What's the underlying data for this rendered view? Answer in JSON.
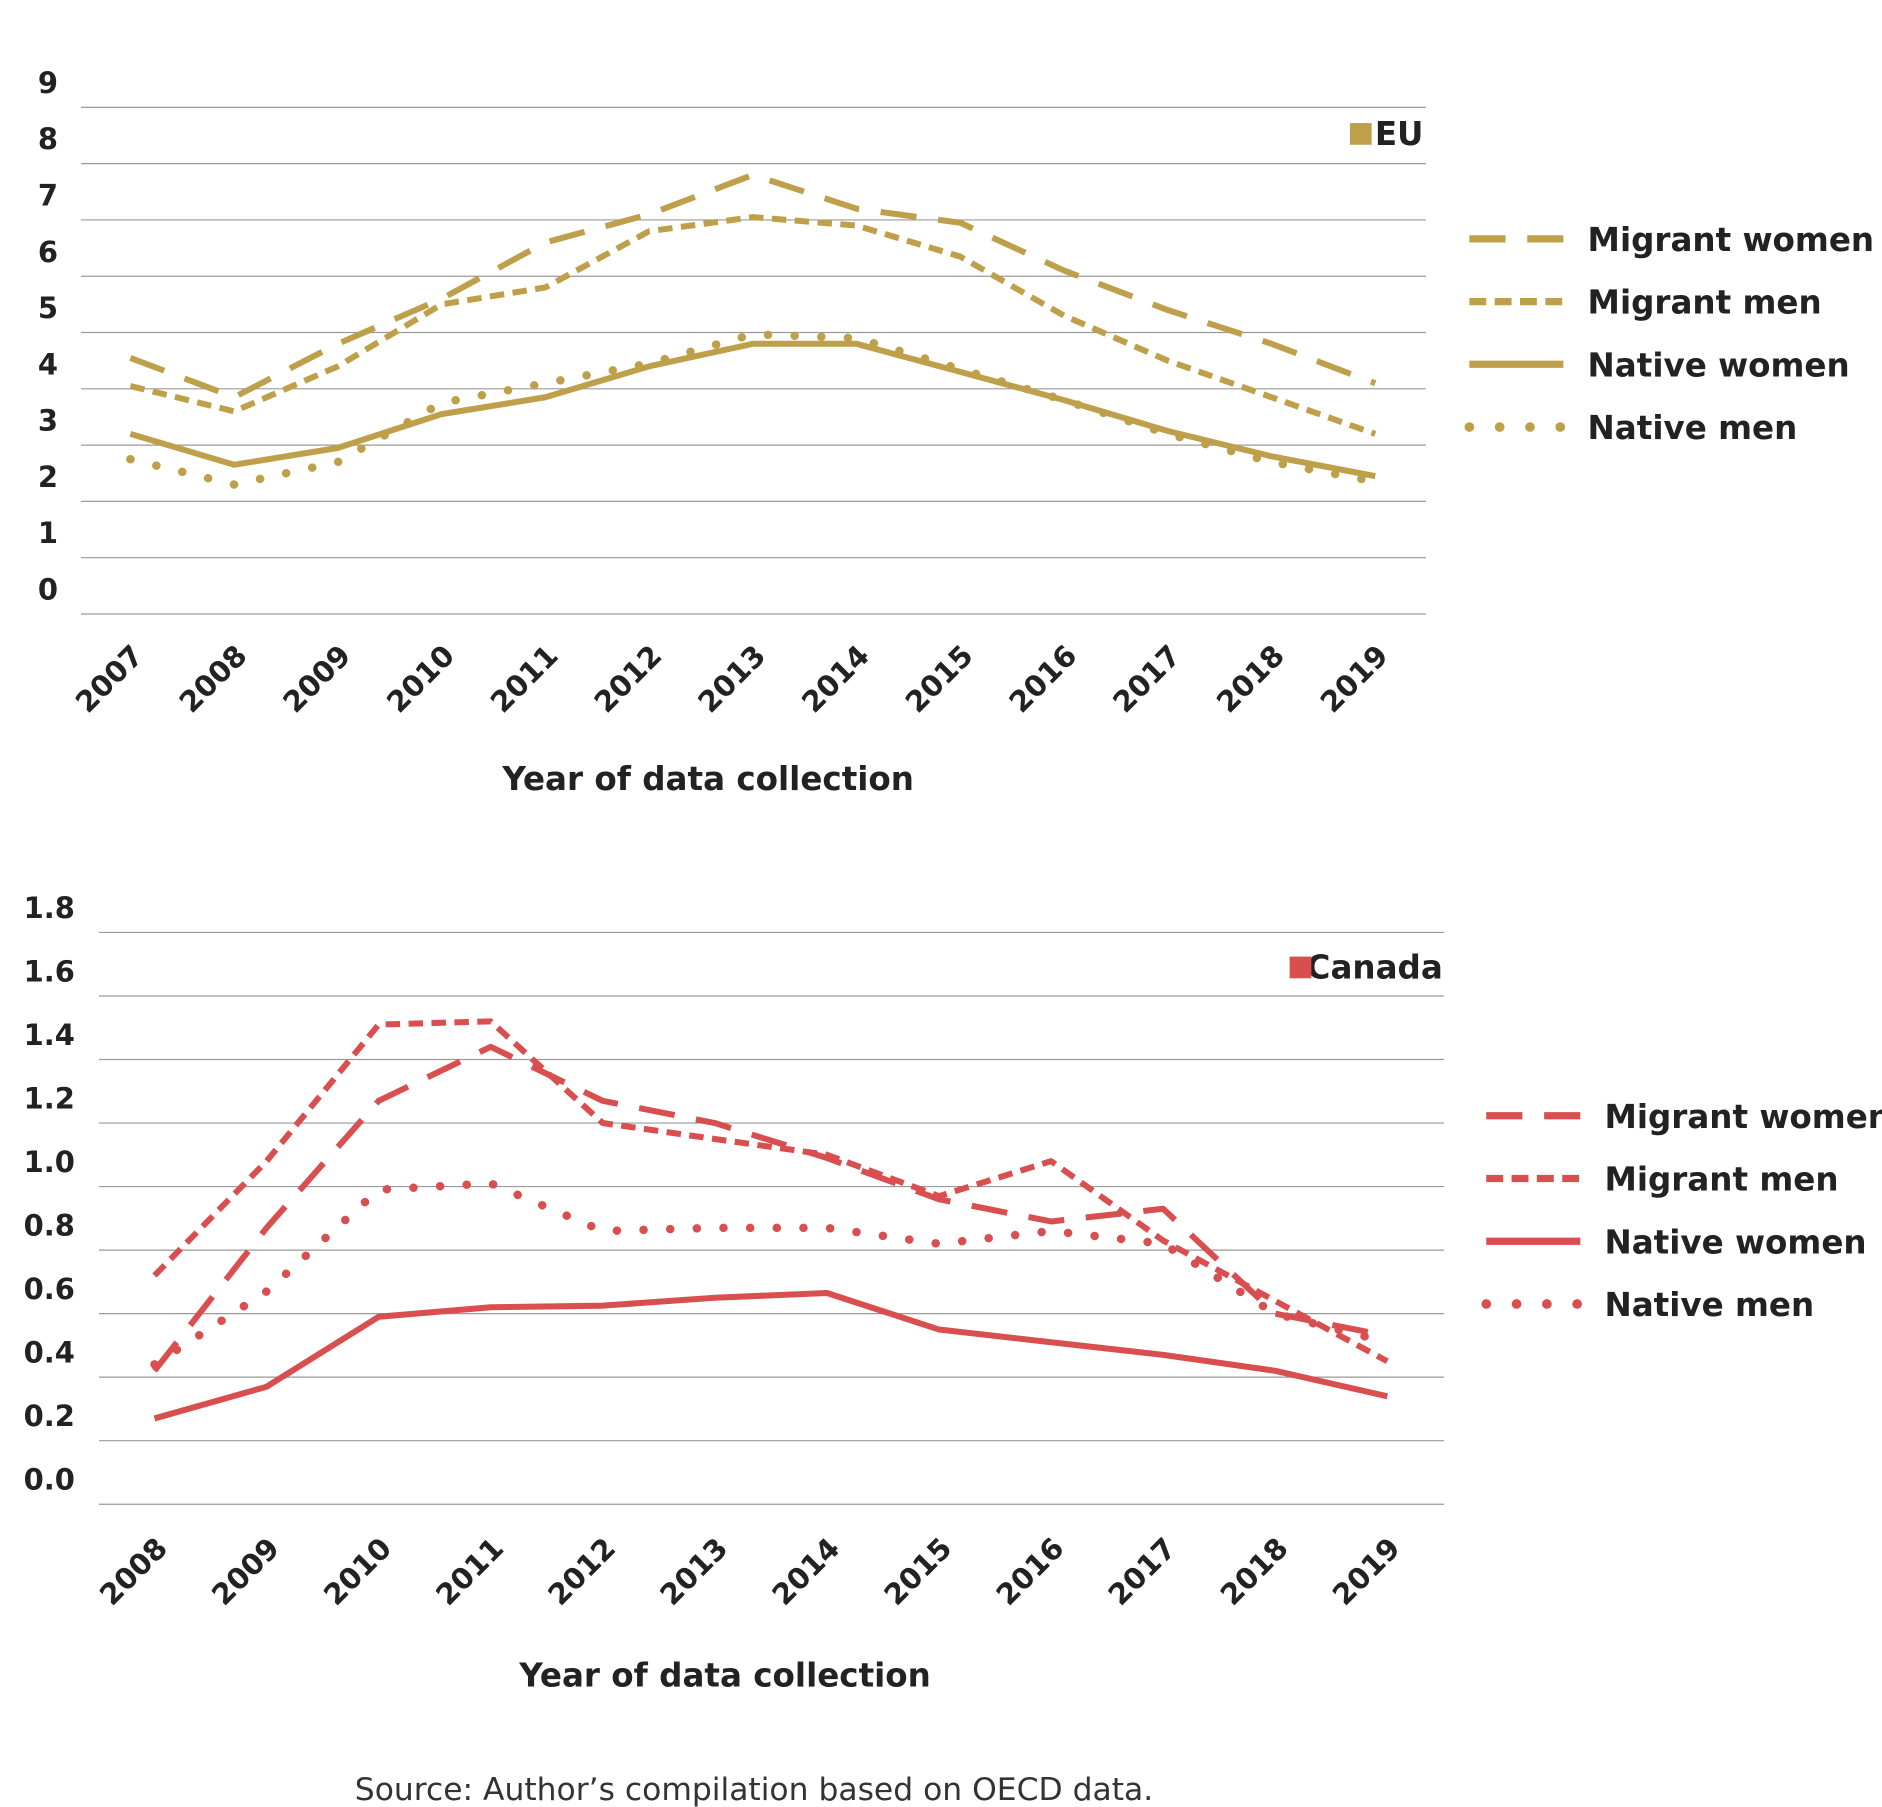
{
  "chart_data": [
    {
      "type": "line",
      "region_label": "EU",
      "xlabel": "Year of data collection",
      "ylabel": "",
      "ylim": [
        0,
        9
      ],
      "yticks": [
        0,
        1,
        2,
        3,
        4,
        5,
        6,
        7,
        8,
        9
      ],
      "grid": true,
      "legend_placement": "right",
      "color": "#bfa04a",
      "categories": [
        "2007",
        "2008",
        "2009",
        "2010",
        "2011",
        "2012",
        "2013",
        "2014",
        "2015",
        "2016",
        "2017",
        "2018",
        "2019"
      ],
      "series": [
        {
          "name": "Migrant women",
          "style": "long-dash",
          "values": [
            4.55,
            3.85,
            4.8,
            5.6,
            6.6,
            7.1,
            7.8,
            7.2,
            6.95,
            6.1,
            5.4,
            4.8,
            4.1
          ]
        },
        {
          "name": "Migrant men",
          "style": "short-dash",
          "values": [
            4.05,
            3.6,
            4.4,
            5.5,
            5.8,
            6.8,
            7.05,
            6.9,
            6.35,
            5.3,
            4.5,
            3.85,
            3.2
          ]
        },
        {
          "name": "Native  women",
          "style": "solid",
          "values": [
            3.2,
            2.65,
            2.95,
            3.55,
            3.85,
            4.4,
            4.8,
            4.8,
            4.3,
            3.8,
            3.25,
            2.8,
            2.45
          ]
        },
        {
          "name": "Native men",
          "style": "dotted",
          "values": [
            2.75,
            2.3,
            2.7,
            3.75,
            4.1,
            4.45,
            4.97,
            4.9,
            4.35,
            3.8,
            3.2,
            2.7,
            2.35
          ]
        }
      ]
    },
    {
      "type": "line",
      "region_label": "Canada",
      "xlabel": "Year of data collection",
      "ylabel": "",
      "ylim": [
        0,
        1.8
      ],
      "yticks": [
        "0.0",
        "0.2",
        "0.4",
        "0.6",
        "0.8",
        "1.0",
        "1.2",
        "1.4",
        "1.6",
        "1.8"
      ],
      "grid": true,
      "legend_placement": "right",
      "color": "#d94f4f",
      "categories": [
        "2008",
        "2009",
        "2010",
        "2011",
        "2012",
        "2013",
        "2014",
        "2015",
        "2016",
        "2017",
        "2018",
        "2019"
      ],
      "series": [
        {
          "name": "Migrant women",
          "style": "long-dash",
          "values": [
            0.42,
            0.87,
            1.27,
            1.44,
            1.27,
            1.2,
            1.09,
            0.96,
            0.89,
            0.93,
            0.6,
            0.53
          ]
        },
        {
          "name": "Migrant men",
          "style": "short-dash",
          "values": [
            0.72,
            1.08,
            1.51,
            1.52,
            1.2,
            1.15,
            1.1,
            0.97,
            1.08,
            0.83,
            0.64,
            0.45
          ]
        },
        {
          "name": "Native women",
          "style": "solid",
          "values": [
            0.27,
            0.37,
            0.59,
            0.62,
            0.625,
            0.65,
            0.665,
            0.55,
            0.51,
            0.47,
            0.42,
            0.34
          ]
        },
        {
          "name": "Native men",
          "style": "dotted",
          "values": [
            0.44,
            0.67,
            0.99,
            1.01,
            0.86,
            0.87,
            0.87,
            0.82,
            0.86,
            0.82,
            0.6,
            0.51
          ]
        }
      ]
    }
  ],
  "source": "Source: Author’s compilation based on OECD data."
}
